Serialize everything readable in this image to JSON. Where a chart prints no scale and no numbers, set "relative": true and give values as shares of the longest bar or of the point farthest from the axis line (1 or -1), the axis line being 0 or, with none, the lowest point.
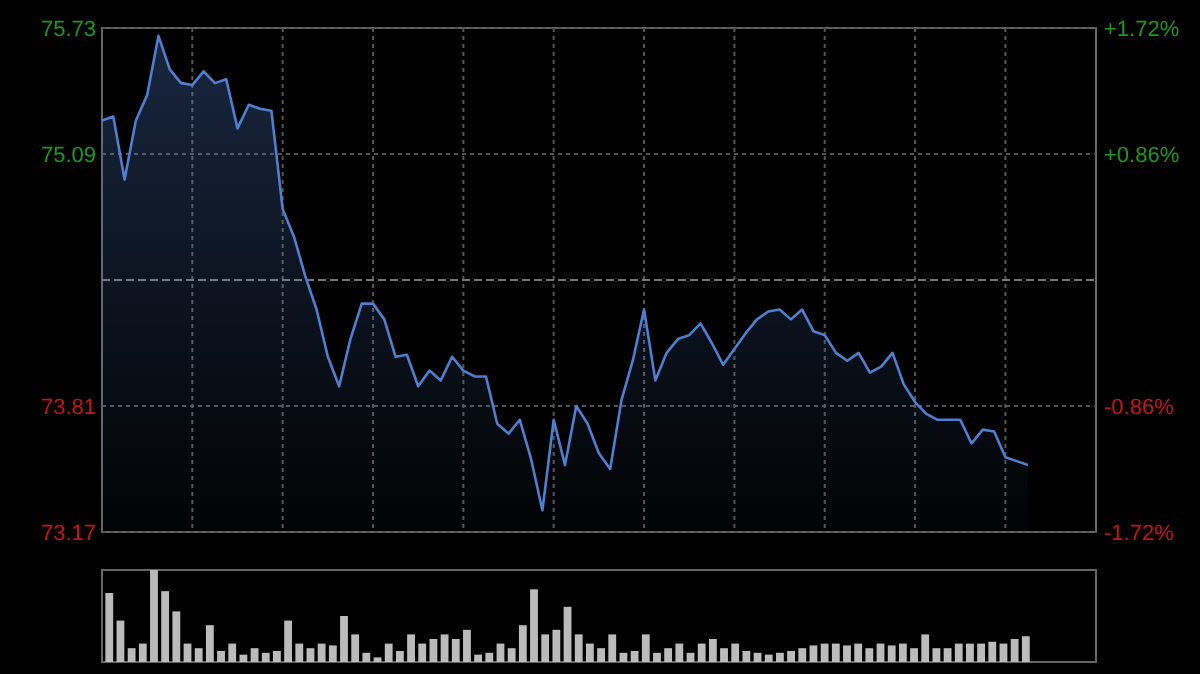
{
  "chart_data": [
    {
      "type": "area",
      "categories": [
        null,
        null,
        null,
        null,
        null,
        null,
        null,
        null,
        null,
        null,
        null,
        null,
        null,
        null,
        null,
        null,
        null,
        null,
        null,
        null,
        null,
        null,
        null,
        null,
        null,
        null,
        null,
        null,
        null,
        null,
        null,
        null,
        null,
        null,
        null,
        null,
        null,
        null,
        null,
        null,
        null,
        null,
        null,
        null,
        null,
        null,
        null,
        null,
        null,
        null,
        null,
        null,
        null,
        null,
        null,
        null,
        null,
        null,
        null,
        null,
        null,
        null,
        null,
        null,
        null,
        null,
        null,
        null,
        null,
        null,
        null,
        null,
        null,
        null,
        null,
        null,
        null,
        null,
        null,
        null,
        null,
        null,
        null
      ],
      "series": [
        {
          "color": "#4f7fd0",
          "values": [
            75.26,
            75.28,
            74.96,
            75.26,
            75.39,
            75.69,
            75.52,
            75.45,
            75.44,
            75.51,
            75.45,
            75.47,
            75.22,
            75.34,
            75.32,
            75.31,
            74.81,
            74.67,
            74.47,
            74.3,
            74.06,
            73.91,
            74.15,
            74.33,
            74.33,
            74.25,
            74.06,
            74.07,
            73.91,
            73.99,
            73.94,
            74.06,
            73.99,
            73.96,
            73.96,
            73.72,
            73.67,
            73.74,
            73.54,
            73.28,
            73.74,
            73.51,
            73.81,
            73.72,
            73.57,
            73.49,
            73.84,
            74.04,
            74.3,
            73.94,
            74.08,
            74.15,
            74.17,
            74.23,
            74.13,
            74.02,
            74.1,
            74.18,
            74.25,
            74.29,
            74.3,
            74.25,
            74.3,
            74.19,
            74.17,
            74.08,
            74.04,
            74.08,
            73.98,
            74.01,
            74.08,
            73.92,
            73.83,
            73.77,
            73.74,
            73.74,
            73.74,
            73.62,
            73.69,
            73.68,
            73.55,
            73.53,
            73.51
          ]
        }
      ],
      "ylim": [
        73.17,
        75.73
      ],
      "yticks": [
        75.73,
        75.09,
        73.81,
        73.17
      ],
      "y2lim": [
        -1.72,
        1.72
      ],
      "y2ticks": [
        {
          "value": 1.72,
          "label": "+1.72%"
        },
        {
          "value": 0.86,
          "label": "+0.86%"
        },
        {
          "value": -0.86,
          "label": "-0.86%"
        },
        {
          "value": -1.72,
          "label": "-1.72%"
        }
      ],
      "ref_lines": [
        {
          "axis": "y",
          "value": 74.45,
          "color": "#777777",
          "line_style": "dashed"
        }
      ],
      "grid": true,
      "tick_labels": "y"
    },
    {
      "type": "bar",
      "relative": true,
      "categories": [
        null,
        null,
        null,
        null,
        null,
        null,
        null,
        null,
        null,
        null,
        null,
        null,
        null,
        null,
        null,
        null,
        null,
        null,
        null,
        null,
        null,
        null,
        null,
        null,
        null,
        null,
        null,
        null,
        null,
        null,
        null,
        null,
        null,
        null,
        null,
        null,
        null,
        null,
        null,
        null,
        null,
        null,
        null,
        null,
        null,
        null,
        null,
        null,
        null,
        null,
        null,
        null,
        null,
        null,
        null,
        null,
        null,
        null,
        null,
        null,
        null,
        null,
        null,
        null,
        null,
        null,
        null,
        null,
        null,
        null,
        null,
        null,
        null,
        null,
        null,
        null,
        null,
        null,
        null,
        null,
        null,
        null,
        null
      ],
      "series": [
        {
          "color": "#bbbbbb",
          "values": [
            0.75,
            0.45,
            0.15,
            0.2,
            1.0,
            0.77,
            0.55,
            0.2,
            0.15,
            0.4,
            0.12,
            0.2,
            0.08,
            0.15,
            0.1,
            0.12,
            0.45,
            0.2,
            0.15,
            0.2,
            0.18,
            0.5,
            0.3,
            0.1,
            0.05,
            0.2,
            0.12,
            0.3,
            0.2,
            0.25,
            0.3,
            0.25,
            0.35,
            0.08,
            0.1,
            0.2,
            0.15,
            0.4,
            0.79,
            0.3,
            0.35,
            0.6,
            0.3,
            0.2,
            0.15,
            0.3,
            0.1,
            0.12,
            0.3,
            0.1,
            0.15,
            0.2,
            0.1,
            0.2,
            0.25,
            0.15,
            0.2,
            0.12,
            0.1,
            0.08,
            0.1,
            0.12,
            0.15,
            0.18,
            0.2,
            0.2,
            0.18,
            0.2,
            0.15,
            0.2,
            0.18,
            0.2,
            0.15,
            0.3,
            0.15,
            0.15,
            0.2,
            0.2,
            0.2,
            0.22,
            0.2,
            0.25,
            0.28
          ]
        }
      ],
      "tick_labels": false
    }
  ]
}
